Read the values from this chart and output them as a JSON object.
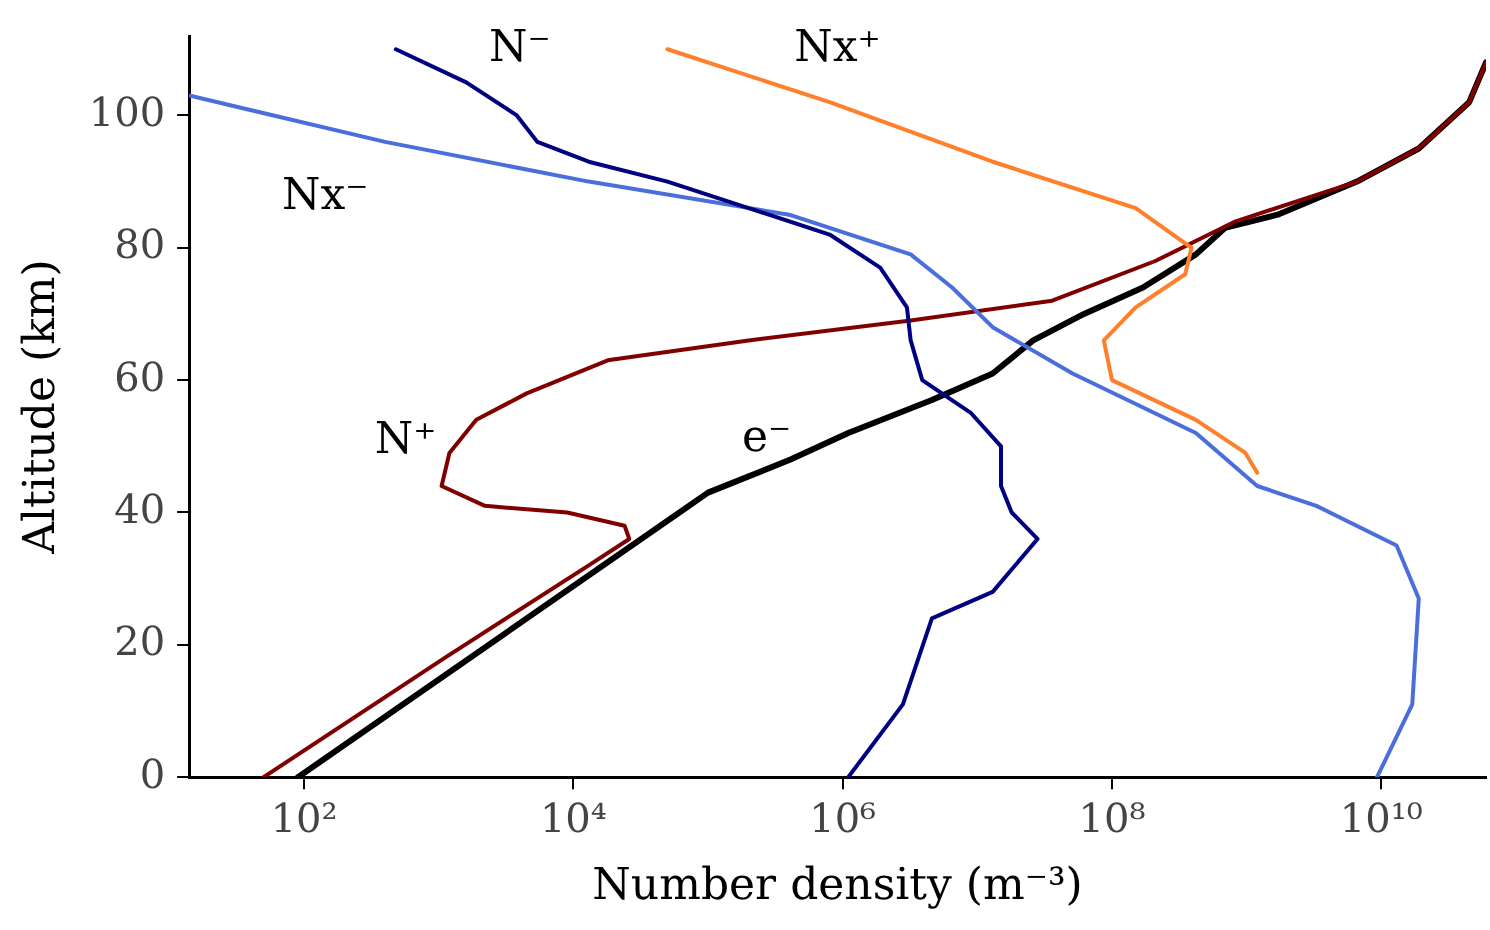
{
  "chart_data": {
    "type": "line",
    "xlabel": "Number density (m⁻³)",
    "ylabel": "Altitude (km)",
    "log": "x",
    "grid": false,
    "legend": false,
    "marker": "none",
    "line_style": "solid",
    "xlim": [
      14,
      60000000000.0
    ],
    "ylim": [
      0,
      112
    ],
    "xticks": [
      {
        "value": 100,
        "label": "10²"
      },
      {
        "value": 10000,
        "label": "10⁴"
      },
      {
        "value": 1000000,
        "label": "10⁶"
      },
      {
        "value": 100000000,
        "label": "10⁸"
      },
      {
        "value": 10000000000,
        "label": "10¹⁰"
      }
    ],
    "yticks": [
      0,
      20,
      40,
      60,
      80,
      100
    ],
    "series": [
      {
        "name": "N⁻",
        "color": "#000080",
        "x": [
          1100000.0,
          2800000.0,
          4600000.0,
          13000000.0,
          28000000.0,
          18000000.0,
          15000000.0,
          15000000.0,
          9000000.0,
          3900000.0,
          3200000.0,
          3000000.0,
          1900000.0,
          800000.0,
          200000.0,
          50000.0,
          13000.0,
          5400.0,
          3800.0,
          1600.0,
          480
        ],
        "values": [
          0,
          11,
          24,
          28,
          36,
          40,
          44,
          50,
          55,
          60,
          66,
          71,
          77,
          82,
          86,
          90,
          93,
          96,
          100,
          105,
          110
        ]
      },
      {
        "name": "Nx⁺",
        "color": "#ff7f2a",
        "x": [
          50000.0,
          800000.0,
          13000000.0,
          150000000.0,
          390000000.0,
          350000000.0,
          150000000.0,
          87000000.0,
          100000000.0,
          420000000.0,
          980000000.0,
          1200000000.0
        ],
        "values": [
          110,
          102,
          93,
          86,
          80,
          76,
          71,
          66,
          60,
          54,
          49,
          46
        ]
      },
      {
        "name": "Nx⁻",
        "color": "#4a6fdc",
        "x": [
          14,
          400,
          13000.0,
          400000.0,
          3200000.0,
          6500000.0,
          13000000.0,
          51000000.0,
          420000000.0,
          1200000000.0,
          3300000000.0,
          13000000000.0,
          19000000000.0,
          17000000000.0,
          9300000000.0
        ],
        "values": [
          103,
          96,
          90,
          85,
          79,
          74,
          68,
          61,
          52,
          44,
          41,
          35,
          27,
          11,
          0
        ]
      },
      {
        "name": "N⁺",
        "color": "#800000",
        "x": [
          50,
          1100,
          13000.0,
          26000.0,
          24000.0,
          9000.0,
          2200.0,
          1050,
          1200,
          1900,
          4500,
          18000.0,
          200000.0,
          3200000.0,
          36000000.0,
          210000000.0,
          830000000.0,
          6600000000.0,
          19000000000.0,
          45000000000.0,
          60000000000.0
        ],
        "values": [
          0,
          18,
          32,
          36,
          38,
          40,
          41,
          44,
          49,
          54,
          58,
          63,
          66,
          69,
          72,
          78,
          84,
          90,
          95,
          102,
          108
        ]
      },
      {
        "name": "e⁻",
        "color": "#000000",
        "x": [
          90,
          100000.0,
          410000.0,
          1100000.0,
          4600000.0,
          13000000.0,
          26000000.0,
          62000000.0,
          170000000.0,
          420000000.0,
          690000000.0,
          1700000000.0,
          6600000000.0,
          19000000000.0,
          45000000000.0,
          60000000000.0
        ],
        "values": [
          0,
          43,
          48,
          52,
          57,
          61,
          66,
          70,
          74,
          79,
          83,
          85,
          90,
          95,
          102,
          108
        ]
      }
    ]
  }
}
